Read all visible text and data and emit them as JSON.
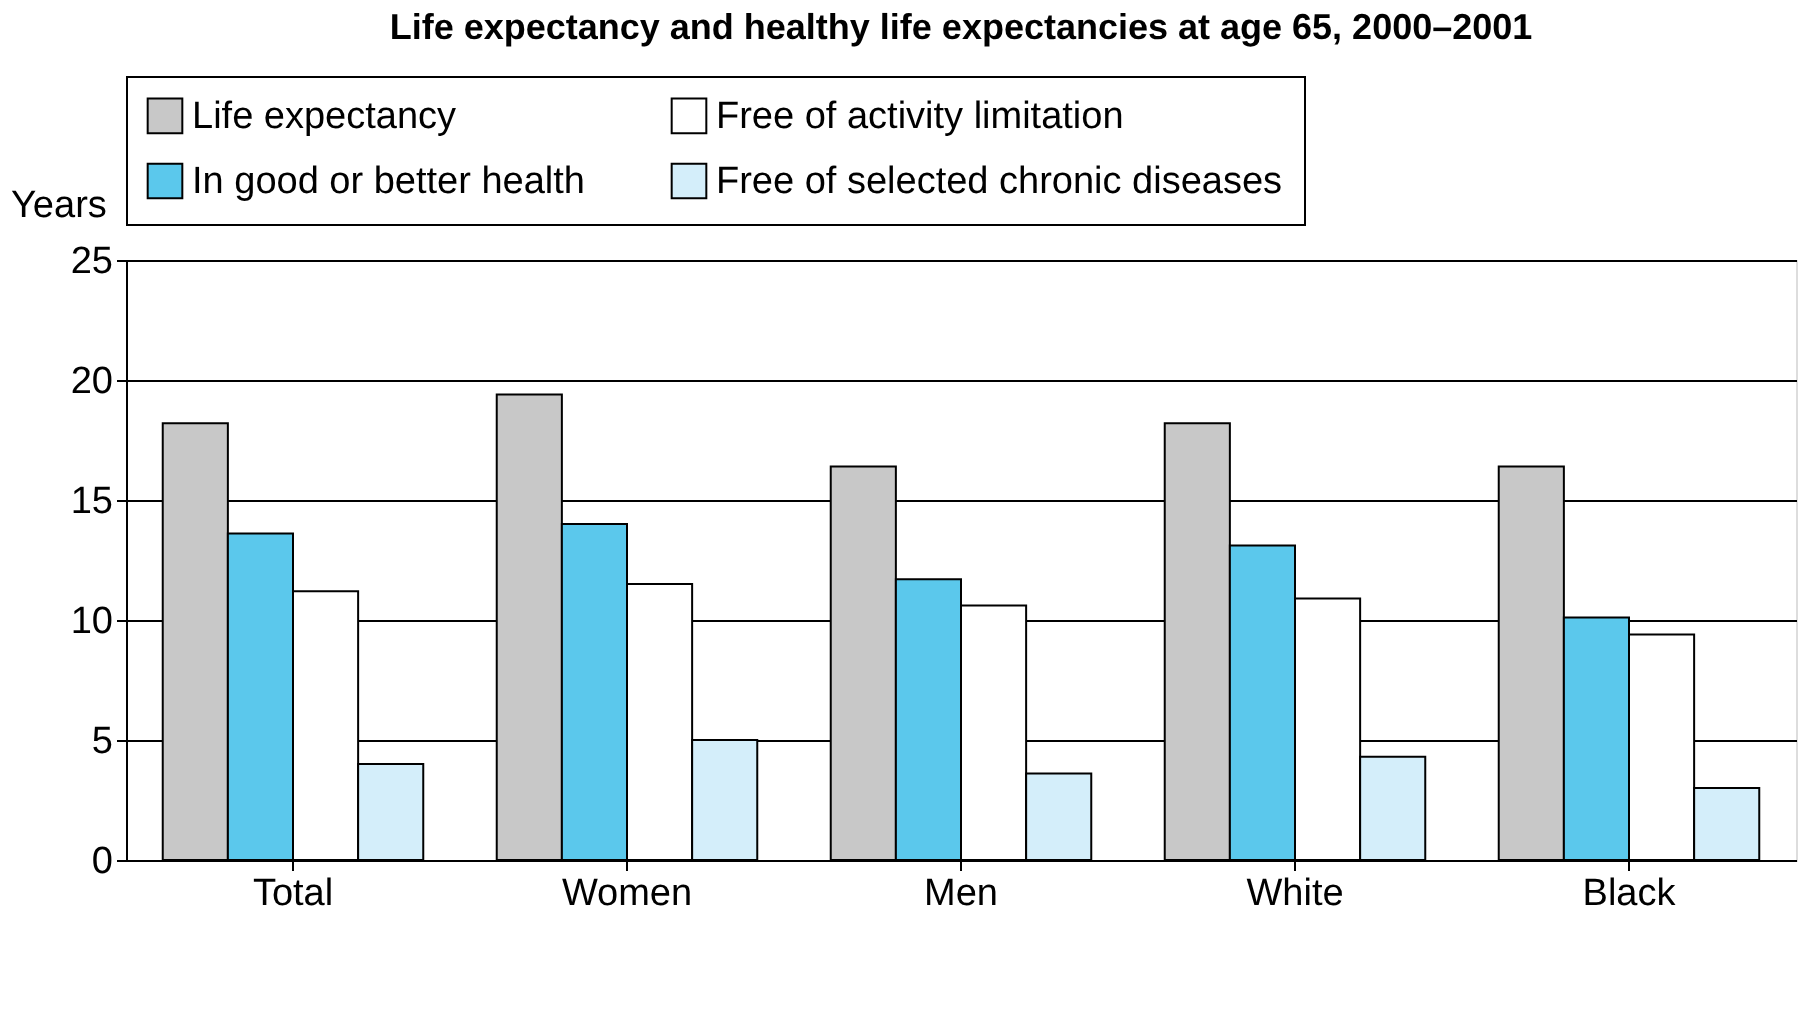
{
  "chart_data": {
    "type": "bar",
    "title": "Life expectancy and healthy life expectancies at age 65, 2000–2001",
    "ylabel": "Years",
    "categories": [
      "Total",
      "Women",
      "Men",
      "White",
      "Black"
    ],
    "series": [
      {
        "name": "Life expectancy",
        "color": "#c8c8c8",
        "values": [
          18.2,
          19.4,
          16.4,
          18.2,
          16.4
        ]
      },
      {
        "name": "In good or better health",
        "color": "#5bc8ec",
        "values": [
          13.6,
          14.0,
          11.7,
          13.1,
          10.1
        ]
      },
      {
        "name": "Free of activity limitation",
        "color": "#ffffff",
        "values": [
          11.2,
          11.5,
          10.6,
          10.9,
          9.4
        ]
      },
      {
        "name": "Free of selected chronic diseases",
        "color": "#d4eefa",
        "values": [
          4.0,
          5.0,
          3.6,
          4.3,
          3.0
        ]
      }
    ],
    "ylim": [
      0,
      25
    ],
    "yticks": [
      0,
      5,
      10,
      15,
      20,
      25
    ],
    "grid": "y",
    "legend": "top"
  }
}
